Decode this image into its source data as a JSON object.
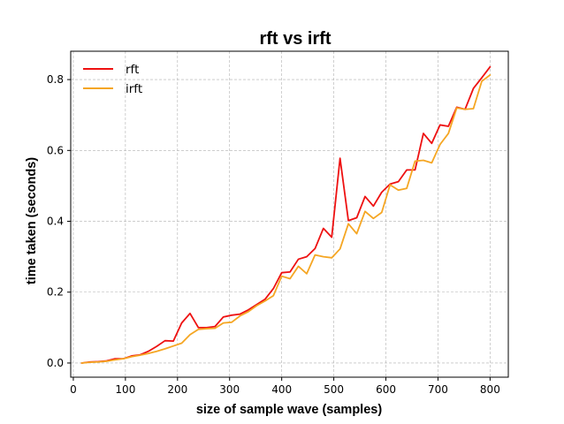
{
  "chart_data": {
    "type": "line",
    "title": "rft vs irft",
    "xlabel": "size of sample wave (samples)",
    "ylabel": "time taken (seconds)",
    "xlim": [
      -5,
      835
    ],
    "ylim": [
      -0.04,
      0.88
    ],
    "xticks": [
      0,
      100,
      200,
      300,
      400,
      500,
      600,
      700,
      800
    ],
    "yticks": [
      0.0,
      0.2,
      0.4,
      0.6,
      0.8
    ],
    "ytick_labels": [
      "0.0",
      "0.2",
      "0.4",
      "0.6",
      "0.8"
    ],
    "grid": true,
    "legend_position": "upper-left",
    "x": [
      16,
      32,
      48,
      64,
      80,
      96,
      112,
      128,
      144,
      160,
      176,
      192,
      208,
      224,
      240,
      256,
      272,
      288,
      304,
      320,
      336,
      352,
      368,
      384,
      400,
      416,
      432,
      448,
      464,
      480,
      496,
      512,
      528,
      544,
      560,
      576,
      592,
      608,
      624,
      640,
      656,
      672,
      688,
      704,
      720,
      736,
      752,
      768,
      784,
      800
    ],
    "series": [
      {
        "name": "rft",
        "color": "#ee1111",
        "values": [
          0.0,
          0.003,
          0.004,
          0.006,
          0.012,
          0.012,
          0.02,
          0.023,
          0.033,
          0.047,
          0.063,
          0.062,
          0.113,
          0.14,
          0.1,
          0.1,
          0.103,
          0.13,
          0.135,
          0.138,
          0.15,
          0.165,
          0.18,
          0.21,
          0.255,
          0.257,
          0.293,
          0.3,
          0.323,
          0.38,
          0.355,
          0.578,
          0.402,
          0.41,
          0.47,
          0.443,
          0.482,
          0.505,
          0.512,
          0.545,
          0.545,
          0.648,
          0.62,
          0.672,
          0.668,
          0.722,
          0.716,
          0.775,
          0.805,
          0.836
        ]
      },
      {
        "name": "irft",
        "color": "#f5a623",
        "values": [
          0.0,
          0.002,
          0.003,
          0.005,
          0.009,
          0.012,
          0.018,
          0.022,
          0.027,
          0.033,
          0.04,
          0.048,
          0.056,
          0.08,
          0.095,
          0.097,
          0.098,
          0.113,
          0.115,
          0.133,
          0.145,
          0.162,
          0.175,
          0.19,
          0.245,
          0.238,
          0.273,
          0.252,
          0.305,
          0.3,
          0.297,
          0.322,
          0.393,
          0.365,
          0.428,
          0.408,
          0.425,
          0.503,
          0.488,
          0.493,
          0.57,
          0.572,
          0.565,
          0.617,
          0.648,
          0.72,
          0.716,
          0.718,
          0.795,
          0.813
        ]
      }
    ]
  }
}
